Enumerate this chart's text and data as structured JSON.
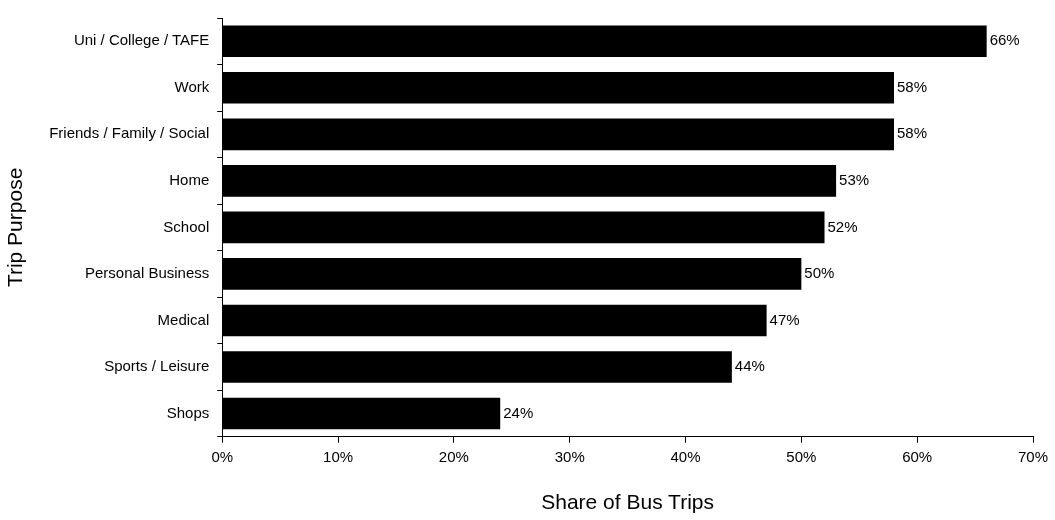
{
  "chart_data": {
    "type": "bar",
    "orientation": "horizontal",
    "xlabel": "Share of Bus Trips",
    "ylabel": "Trip Purpose",
    "categories": [
      "Uni / College / TAFE",
      "Work",
      "Friends / Family / Social",
      "Home",
      "School",
      "Personal Business",
      "Medical",
      "Sports / Leisure",
      "Shops"
    ],
    "values": [
      66,
      58,
      58,
      53,
      52,
      50,
      47,
      44,
      24
    ],
    "value_labels": [
      "66%",
      "58%",
      "58%",
      "53%",
      "52%",
      "50%",
      "47%",
      "44%",
      "24%"
    ],
    "color": "#000000",
    "xlim": [
      0,
      70
    ],
    "xticks": [
      {
        "value": 0,
        "label": "0%"
      },
      {
        "value": 10,
        "label": "10%"
      },
      {
        "value": 20,
        "label": "20%"
      },
      {
        "value": 30,
        "label": "30%"
      },
      {
        "value": 40,
        "label": "40%"
      },
      {
        "value": 50,
        "label": "50%"
      },
      {
        "value": 60,
        "label": "60%"
      },
      {
        "value": 70,
        "label": "70%"
      }
    ],
    "grid": false,
    "legend": false
  }
}
